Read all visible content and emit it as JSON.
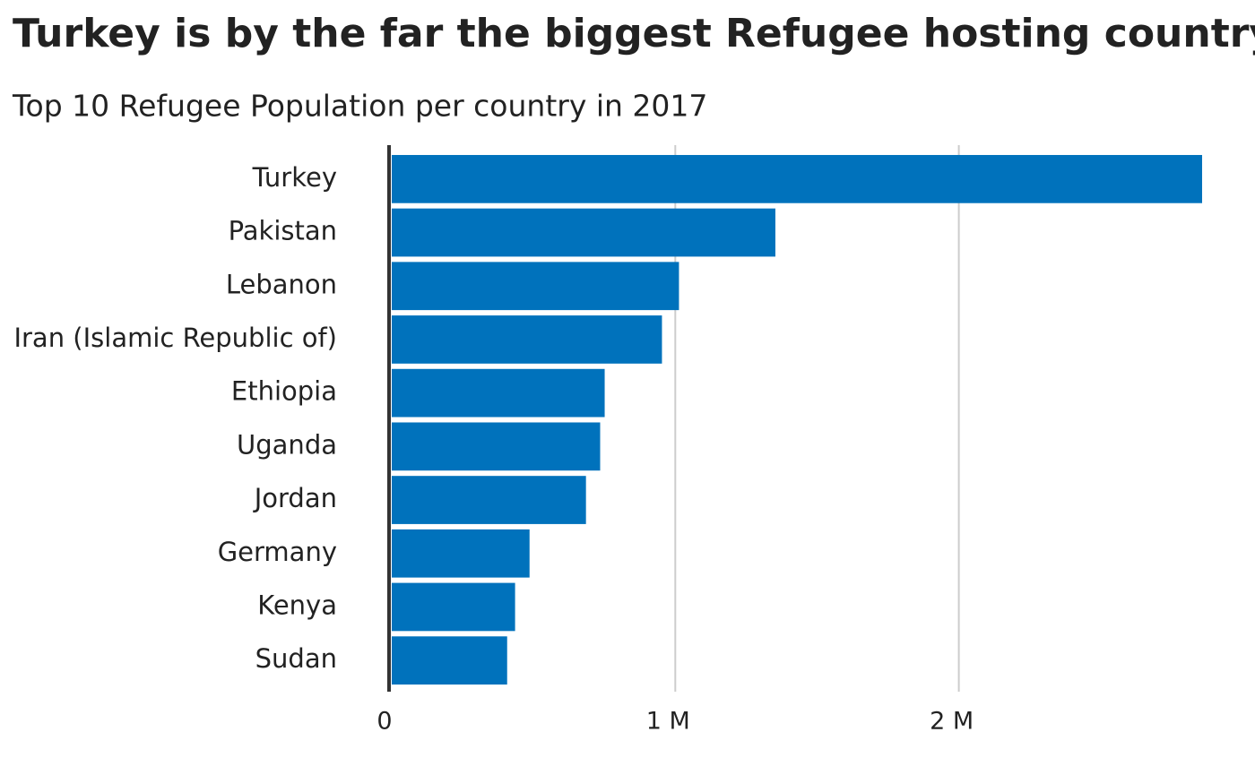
{
  "chart_data": {
    "type": "bar",
    "orientation": "horizontal",
    "title": "Turkey is by the far the biggest Refugee hosting country",
    "subtitle": "Top 10 Refugee Population per country in 2017",
    "categories": [
      "Turkey",
      "Pakistan",
      "Lebanon",
      "Iran (Islamic Republic of)",
      "Ethiopia",
      "Uganda",
      "Jordan",
      "Germany",
      "Kenya",
      "Sudan"
    ],
    "values": [
      2858000,
      1353000,
      1013000,
      953000,
      751000,
      735000,
      685000,
      486000,
      435000,
      407000
    ],
    "color": "#0072bc",
    "xlim": [
      0,
      2858000
    ],
    "xticks": [
      0,
      {
        "value": 1000000,
        "label": "1 M"
      },
      {
        "value": 2000000,
        "label": "2 M"
      }
    ],
    "grid": true
  }
}
